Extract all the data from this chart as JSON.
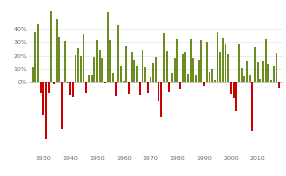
{
  "background_color": "#ffffff",
  "grid_color": "#dddddd",
  "positive_color": "#6b8e23",
  "negative_color": "#cc0000",
  "years": [
    1926,
    1927,
    1928,
    1929,
    1930,
    1931,
    1932,
    1933,
    1934,
    1935,
    1936,
    1937,
    1938,
    1939,
    1940,
    1941,
    1942,
    1943,
    1944,
    1945,
    1946,
    1947,
    1948,
    1949,
    1950,
    1951,
    1952,
    1953,
    1954,
    1955,
    1956,
    1957,
    1958,
    1959,
    1960,
    1961,
    1962,
    1963,
    1964,
    1965,
    1966,
    1967,
    1968,
    1969,
    1970,
    1971,
    1972,
    1973,
    1974,
    1975,
    1976,
    1977,
    1978,
    1979,
    1980,
    1981,
    1982,
    1983,
    1984,
    1985,
    1986,
    1987,
    1988,
    1989,
    1990,
    1991,
    1992,
    1993,
    1994,
    1995,
    1996,
    1997,
    1998,
    1999,
    2000,
    2001,
    2002,
    2003,
    2004,
    2005,
    2006,
    2007,
    2008,
    2009,
    2010,
    2011,
    2012,
    2013,
    2014,
    2015,
    2016,
    2017,
    2018
  ],
  "returns": [
    11.62,
    37.49,
    43.61,
    -8.42,
    -24.9,
    -43.34,
    -8.19,
    53.99,
    -1.44,
    47.67,
    33.92,
    -35.34,
    31.12,
    -0.91,
    -9.78,
    -11.59,
    20.34,
    25.9,
    19.75,
    36.44,
    -8.07,
    5.71,
    5.5,
    18.79,
    31.71,
    24.02,
    18.37,
    -1.0,
    52.62,
    31.56,
    6.56,
    -10.78,
    43.36,
    11.96,
    0.47,
    26.89,
    -8.73,
    22.8,
    16.48,
    12.45,
    -10.06,
    23.98,
    11.06,
    -8.5,
    4.01,
    14.31,
    18.98,
    -14.66,
    -26.47,
    37.2,
    23.84,
    -7.18,
    6.56,
    18.44,
    32.42,
    -4.91,
    21.41,
    22.51,
    6.27,
    32.16,
    18.47,
    5.23,
    16.81,
    31.49,
    -3.06,
    30.47,
    7.62,
    10.08,
    1.32,
    37.58,
    22.96,
    33.36,
    28.58,
    21.04,
    -9.1,
    -11.89,
    -22.1,
    28.68,
    10.88,
    4.91,
    15.79,
    5.55,
    -37.0,
    26.46,
    15.06,
    2.11,
    16.0,
    32.39,
    13.69,
    1.38,
    11.96,
    21.83,
    -4.38
  ],
  "xlim": [
    1924.5,
    2019.5
  ],
  "ylim": [
    -55,
    58
  ],
  "xticks": [
    1930,
    1940,
    1950,
    1960,
    1970,
    1980,
    1990,
    2000,
    2010
  ],
  "yticks": [
    40,
    30,
    20,
    10,
    0
  ],
  "tick_fontsize": 4.5,
  "bar_width": 0.7
}
